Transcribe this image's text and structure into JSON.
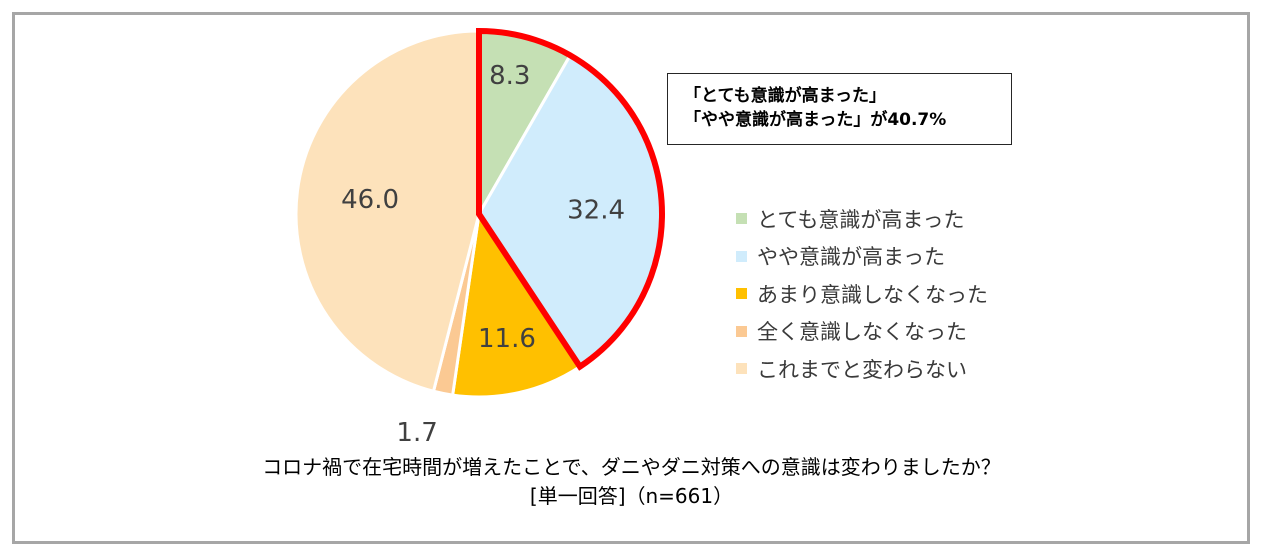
{
  "chart_data": {
    "type": "pie",
    "start_angle_deg": 0,
    "direction": "clockwise",
    "slices": [
      {
        "label": "とても意識が高まった",
        "value": 8.3,
        "value_label": "8.3",
        "color": "#c5e0b4"
      },
      {
        "label": "やや意識が高まった",
        "value": 32.4,
        "value_label": "32.4",
        "color": "#d0ecfc"
      },
      {
        "label": "あまり意識しなくなった",
        "value": 11.6,
        "value_label": "11.6",
        "color": "#ffc000"
      },
      {
        "label": "全く意識しなくなった",
        "value": 1.7,
        "value_label": "1.7",
        "color": "#fbc993"
      },
      {
        "label": "これまでと変わらない",
        "value": 46.0,
        "value_label": "46.0",
        "color": "#fde2bb"
      }
    ],
    "highlight": {
      "slices": [
        0,
        1
      ],
      "outline_color": "#ff0000"
    },
    "callout": {
      "line1": "「とても意識が高まった」",
      "line2": "「やや意識が高まった」が40.7%"
    },
    "legend_position": "right",
    "question": "コロナ禍で在宅時間が増えたことで、ダニやダニ対策への意識は変わりましたか？",
    "note": "[単一回答]（n=661）"
  }
}
